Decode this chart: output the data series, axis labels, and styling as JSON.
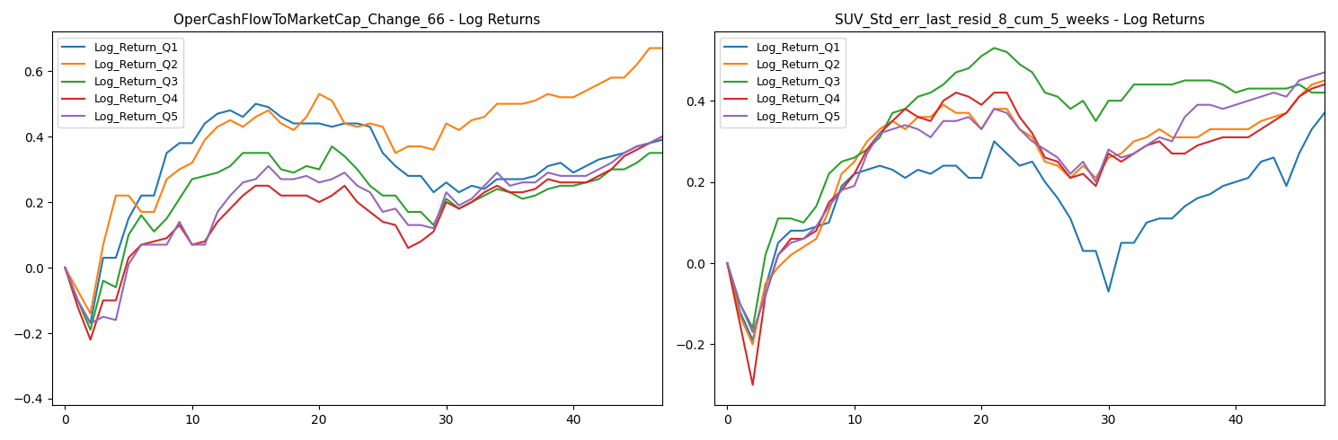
{
  "chart1_title": "OperCashFlowToMarketCap_Change_66 - Log Returns",
  "chart2_title": "SUV_Std_err_last_resid_8_cum_5_weeks - Log Returns",
  "legend_labels": [
    "Log_Return_Q1",
    "Log_Return_Q2",
    "Log_Return_Q3",
    "Log_Return_Q4",
    "Log_Return_Q5"
  ],
  "colors": [
    "#1f77b4",
    "#ff7f0e",
    "#2ca02c",
    "#d62728",
    "#9467bd"
  ],
  "xlim": [
    -1,
    47
  ],
  "chart1_ylim": [
    -0.42,
    0.72
  ],
  "chart2_ylim": [
    -0.35,
    0.57
  ],
  "chart1_yticks": [
    -0.4,
    -0.2,
    0.0,
    0.2,
    0.4,
    0.6
  ],
  "chart2_yticks": [
    -0.2,
    0.0,
    0.2,
    0.4
  ],
  "xticks": [
    0,
    10,
    20,
    30,
    40
  ],
  "n_points": 48,
  "chart1_q1": [
    0.0,
    -0.1,
    -0.17,
    0.03,
    0.03,
    0.15,
    0.22,
    0.22,
    0.35,
    0.38,
    0.38,
    0.44,
    0.47,
    0.48,
    0.46,
    0.5,
    0.49,
    0.46,
    0.44,
    0.44,
    0.44,
    0.43,
    0.44,
    0.44,
    0.43,
    0.35,
    0.31,
    0.28,
    0.28,
    0.23,
    0.26,
    0.23,
    0.25,
    0.24,
    0.27,
    0.27,
    0.27,
    0.28,
    0.31,
    0.32,
    0.29,
    0.31,
    0.33,
    0.34,
    0.35,
    0.37,
    0.38,
    0.39
  ],
  "chart1_q2": [
    0.0,
    -0.07,
    -0.14,
    0.07,
    0.22,
    0.22,
    0.17,
    0.17,
    0.27,
    0.3,
    0.32,
    0.39,
    0.43,
    0.45,
    0.43,
    0.46,
    0.48,
    0.44,
    0.42,
    0.46,
    0.53,
    0.51,
    0.44,
    0.43,
    0.44,
    0.43,
    0.35,
    0.37,
    0.37,
    0.36,
    0.44,
    0.42,
    0.45,
    0.46,
    0.5,
    0.5,
    0.5,
    0.51,
    0.53,
    0.52,
    0.52,
    0.54,
    0.56,
    0.58,
    0.58,
    0.62,
    0.67,
    0.67
  ],
  "chart1_q3": [
    0.0,
    -0.1,
    -0.19,
    -0.04,
    -0.06,
    0.1,
    0.16,
    0.11,
    0.15,
    0.21,
    0.27,
    0.28,
    0.29,
    0.31,
    0.35,
    0.35,
    0.35,
    0.3,
    0.29,
    0.31,
    0.3,
    0.37,
    0.34,
    0.3,
    0.25,
    0.22,
    0.22,
    0.17,
    0.17,
    0.13,
    0.21,
    0.18,
    0.2,
    0.22,
    0.24,
    0.23,
    0.21,
    0.22,
    0.24,
    0.25,
    0.25,
    0.26,
    0.27,
    0.3,
    0.3,
    0.32,
    0.35,
    0.35
  ],
  "chart1_q4": [
    0.0,
    -0.12,
    -0.22,
    -0.1,
    -0.1,
    0.03,
    0.07,
    0.08,
    0.09,
    0.13,
    0.07,
    0.08,
    0.14,
    0.18,
    0.22,
    0.25,
    0.25,
    0.22,
    0.22,
    0.22,
    0.2,
    0.22,
    0.25,
    0.2,
    0.17,
    0.14,
    0.13,
    0.06,
    0.08,
    0.11,
    0.2,
    0.18,
    0.2,
    0.23,
    0.25,
    0.23,
    0.23,
    0.24,
    0.27,
    0.26,
    0.26,
    0.26,
    0.28,
    0.3,
    0.34,
    0.36,
    0.38,
    0.4
  ],
  "chart1_q5": [
    0.0,
    -0.1,
    -0.17,
    -0.15,
    -0.16,
    0.01,
    0.07,
    0.07,
    0.07,
    0.14,
    0.07,
    0.07,
    0.17,
    0.22,
    0.26,
    0.27,
    0.31,
    0.27,
    0.27,
    0.28,
    0.26,
    0.27,
    0.29,
    0.25,
    0.23,
    0.17,
    0.18,
    0.13,
    0.13,
    0.12,
    0.23,
    0.19,
    0.21,
    0.25,
    0.29,
    0.25,
    0.26,
    0.26,
    0.29,
    0.28,
    0.28,
    0.28,
    0.3,
    0.32,
    0.35,
    0.37,
    0.38,
    0.4
  ],
  "chart2_q1": [
    0.0,
    -0.12,
    -0.19,
    -0.06,
    0.05,
    0.08,
    0.08,
    0.09,
    0.1,
    0.19,
    0.22,
    0.23,
    0.24,
    0.23,
    0.21,
    0.23,
    0.22,
    0.24,
    0.24,
    0.21,
    0.21,
    0.3,
    0.27,
    0.24,
    0.25,
    0.2,
    0.16,
    0.11,
    0.03,
    0.03,
    -0.07,
    0.05,
    0.05,
    0.1,
    0.11,
    0.11,
    0.14,
    0.16,
    0.17,
    0.19,
    0.2,
    0.21,
    0.25,
    0.26,
    0.19,
    0.27,
    0.33,
    0.37
  ],
  "chart2_q2": [
    0.0,
    -0.13,
    -0.2,
    -0.05,
    -0.01,
    0.02,
    0.04,
    0.06,
    0.13,
    0.22,
    0.25,
    0.3,
    0.33,
    0.35,
    0.33,
    0.36,
    0.36,
    0.39,
    0.37,
    0.37,
    0.33,
    0.38,
    0.38,
    0.33,
    0.31,
    0.25,
    0.24,
    0.21,
    0.24,
    0.21,
    0.26,
    0.27,
    0.3,
    0.31,
    0.33,
    0.31,
    0.31,
    0.31,
    0.33,
    0.33,
    0.33,
    0.33,
    0.35,
    0.36,
    0.37,
    0.41,
    0.44,
    0.45
  ],
  "chart2_q3": [
    0.0,
    -0.1,
    -0.16,
    0.02,
    0.11,
    0.11,
    0.1,
    0.14,
    0.22,
    0.25,
    0.26,
    0.28,
    0.31,
    0.37,
    0.38,
    0.41,
    0.42,
    0.44,
    0.47,
    0.48,
    0.51,
    0.53,
    0.52,
    0.49,
    0.47,
    0.42,
    0.41,
    0.38,
    0.4,
    0.35,
    0.4,
    0.4,
    0.44,
    0.44,
    0.44,
    0.44,
    0.45,
    0.45,
    0.45,
    0.44,
    0.42,
    0.43,
    0.43,
    0.43,
    0.43,
    0.44,
    0.42,
    0.42
  ],
  "chart2_q4": [
    0.0,
    -0.15,
    -0.3,
    -0.08,
    0.02,
    0.06,
    0.06,
    0.08,
    0.15,
    0.18,
    0.22,
    0.28,
    0.32,
    0.35,
    0.38,
    0.36,
    0.35,
    0.4,
    0.42,
    0.41,
    0.39,
    0.42,
    0.42,
    0.36,
    0.32,
    0.26,
    0.25,
    0.21,
    0.22,
    0.19,
    0.27,
    0.25,
    0.27,
    0.29,
    0.3,
    0.27,
    0.27,
    0.29,
    0.3,
    0.31,
    0.31,
    0.31,
    0.33,
    0.35,
    0.37,
    0.41,
    0.43,
    0.44
  ],
  "chart2_q5": [
    0.0,
    -0.1,
    -0.17,
    -0.08,
    0.02,
    0.05,
    0.06,
    0.09,
    0.14,
    0.18,
    0.19,
    0.27,
    0.32,
    0.33,
    0.34,
    0.33,
    0.31,
    0.35,
    0.35,
    0.36,
    0.33,
    0.38,
    0.37,
    0.33,
    0.3,
    0.28,
    0.26,
    0.22,
    0.25,
    0.2,
    0.28,
    0.26,
    0.27,
    0.29,
    0.31,
    0.3,
    0.36,
    0.39,
    0.39,
    0.38,
    0.39,
    0.4,
    0.41,
    0.42,
    0.41,
    0.45,
    0.46,
    0.47
  ]
}
